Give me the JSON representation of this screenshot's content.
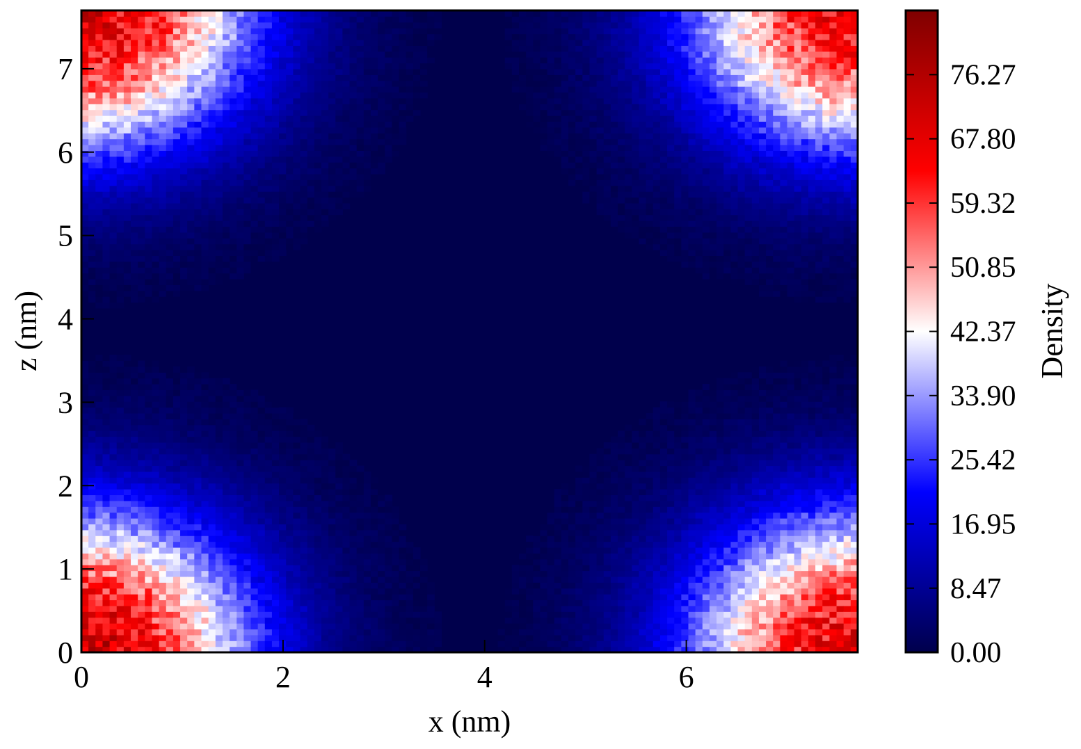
{
  "chart_data": {
    "type": "heatmap",
    "title": "",
    "xlabel": "x (nm)",
    "ylabel": "z (nm)",
    "xlim": [
      0,
      7.7
    ],
    "ylim": [
      0,
      7.7
    ],
    "x_ticks": [
      0,
      2,
      4,
      6
    ],
    "y_ticks": [
      0,
      1,
      2,
      3,
      4,
      5,
      6,
      7
    ],
    "colorbar": {
      "label": "Density",
      "range": [
        0,
        84.75
      ],
      "ticks": [
        "0.00",
        "8.47",
        "16.95",
        "25.42",
        "33.90",
        "42.37",
        "50.85",
        "59.32",
        "67.80",
        "76.27"
      ],
      "colormap": "seismic",
      "colors": [
        "#00004c",
        "#0000ff",
        "#ffffff",
        "#ff0000",
        "#7f0000"
      ]
    },
    "regions": [
      {
        "location": "bottom-left corner",
        "x": 0.0,
        "z": 0.0,
        "peak_density": 72
      },
      {
        "location": "top-left corner",
        "x": 0.0,
        "z": 7.7,
        "peak_density": 70
      },
      {
        "location": "top-right corner",
        "x": 7.7,
        "z": 7.7,
        "peak_density": 66
      },
      {
        "location": "bottom-right corner",
        "x": 7.7,
        "z": 0.0,
        "peak_density": 68
      },
      {
        "location": "center",
        "x": 3.85,
        "z": 3.85,
        "peak_density": 1
      }
    ],
    "grid": false,
    "legend": "none"
  }
}
